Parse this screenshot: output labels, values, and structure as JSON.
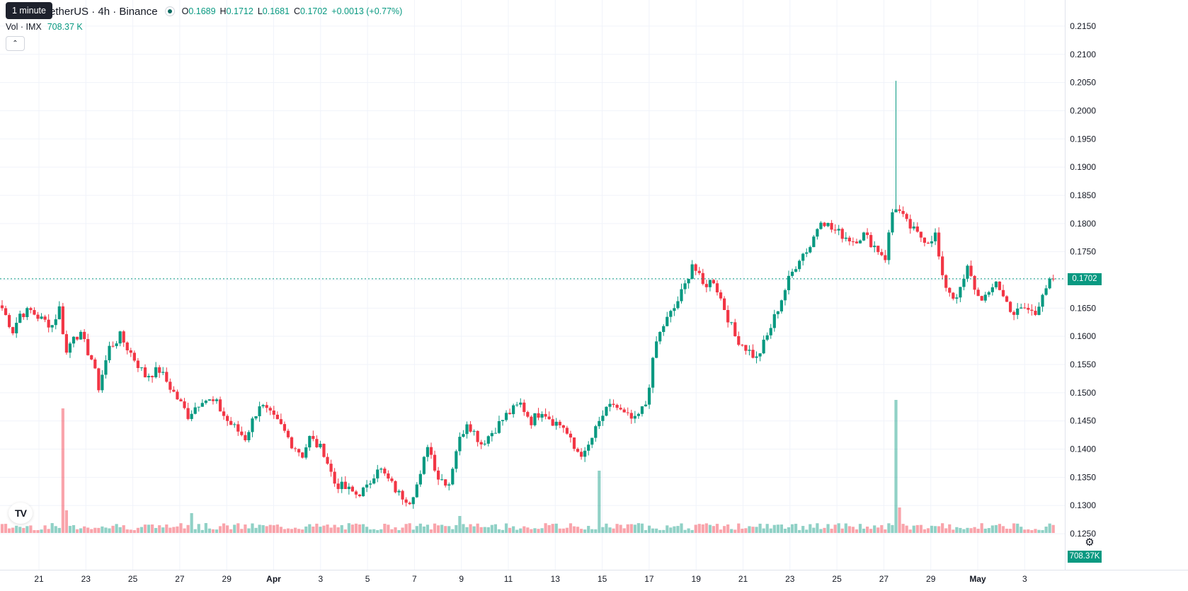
{
  "header": {
    "symbol_text": "etherUS · 4h · Binance",
    "tooltip": "1 minute",
    "ohlc": [
      {
        "label": "O",
        "value": "0.1689"
      },
      {
        "label": "H",
        "value": "0.1712"
      },
      {
        "label": "L",
        "value": "0.1681"
      },
      {
        "label": "C",
        "value": "0.1702"
      }
    ],
    "change": "+0.0013 (+0.77%)",
    "volume_label": "Vol · IMX",
    "volume_value": "708.37 K",
    "collapse_icon": "chevron-up-icon"
  },
  "price_axis": {
    "ticks": [
      "0.2150",
      "0.2100",
      "0.2050",
      "0.2000",
      "0.1950",
      "0.1900",
      "0.1850",
      "0.1800",
      "0.1750",
      "0.1700",
      "0.1650",
      "0.1600",
      "0.1550",
      "0.1500",
      "0.1450",
      "0.1400",
      "0.1350",
      "0.1300",
      "0.1250"
    ],
    "last_price": "0.1702",
    "last_volume": "708.37K"
  },
  "time_axis": {
    "labels": [
      "21",
      "23",
      "25",
      "27",
      "29",
      "Apr",
      "3",
      "5",
      "7",
      "9",
      "11",
      "13",
      "15",
      "17",
      "19",
      "21",
      "23",
      "25",
      "27",
      "29",
      "May",
      "3"
    ]
  },
  "colors": {
    "up": "#089981",
    "down": "#f23645",
    "grid": "#f0f3fa",
    "axis_text": "#131722"
  },
  "chart_data": {
    "type": "candlestick",
    "interval": "4h",
    "y_range": [
      0.1225,
      0.2175
    ],
    "last_close": 0.1702,
    "tick_labels": [
      "21",
      "23",
      "25",
      "27",
      "29",
      "Apr",
      "3",
      "5",
      "7",
      "9",
      "11",
      "13",
      "15",
      "17",
      "19",
      "21",
      "23",
      "25",
      "27",
      "29",
      "May",
      "3"
    ],
    "anchors": [
      [
        0,
        0.165
      ],
      [
        3,
        0.161
      ],
      [
        5,
        0.164
      ],
      [
        8,
        0.1645
      ],
      [
        11,
        0.163
      ],
      [
        14,
        0.162
      ],
      [
        16,
        0.165
      ],
      [
        18,
        0.157
      ],
      [
        20,
        0.1605
      ],
      [
        22,
        0.16
      ],
      [
        25,
        0.156
      ],
      [
        27,
        0.151
      ],
      [
        30,
        0.158
      ],
      [
        33,
        0.16
      ],
      [
        36,
        0.157
      ],
      [
        40,
        0.153
      ],
      [
        44,
        0.154
      ],
      [
        48,
        0.15
      ],
      [
        52,
        0.146
      ],
      [
        56,
        0.149
      ],
      [
        60,
        0.148
      ],
      [
        63,
        0.145
      ],
      [
        68,
        0.142
      ],
      [
        72,
        0.148
      ],
      [
        78,
        0.144
      ],
      [
        81,
        0.141
      ],
      [
        84,
        0.139
      ],
      [
        86,
        0.142
      ],
      [
        90,
        0.1395
      ],
      [
        93,
        0.134
      ],
      [
        96,
        0.133
      ],
      [
        99,
        0.132
      ],
      [
        102,
        0.133
      ],
      [
        105,
        0.137
      ],
      [
        108,
        0.1345
      ],
      [
        111,
        0.132
      ],
      [
        114,
        0.131
      ],
      [
        117,
        0.135
      ],
      [
        119,
        0.141
      ],
      [
        122,
        0.135
      ],
      [
        125,
        0.134
      ],
      [
        127,
        0.14
      ],
      [
        130,
        0.145
      ],
      [
        134,
        0.141
      ],
      [
        137,
        0.143
      ],
      [
        141,
        0.146
      ],
      [
        145,
        0.148
      ],
      [
        148,
        0.145
      ],
      [
        151,
        0.147
      ],
      [
        154,
        0.145
      ],
      [
        157,
        0.144
      ],
      [
        160,
        0.14
      ],
      [
        163,
        0.139
      ],
      [
        165,
        0.142
      ],
      [
        168,
        0.146
      ],
      [
        171,
        0.148
      ],
      [
        174,
        0.146
      ],
      [
        177,
        0.145
      ],
      [
        180,
        0.148
      ],
      [
        183,
        0.159
      ],
      [
        185,
        0.162
      ],
      [
        188,
        0.165
      ],
      [
        191,
        0.169
      ],
      [
        193,
        0.173
      ],
      [
        196,
        0.169
      ],
      [
        199,
        0.17
      ],
      [
        202,
        0.165
      ],
      [
        205,
        0.16
      ],
      [
        208,
        0.158
      ],
      [
        211,
        0.156
      ],
      [
        214,
        0.16
      ],
      [
        217,
        0.165
      ],
      [
        220,
        0.17
      ],
      [
        223,
        0.174
      ],
      [
        226,
        0.176
      ],
      [
        229,
        0.181
      ],
      [
        232,
        0.179
      ],
      [
        235,
        0.178
      ],
      [
        238,
        0.177
      ],
      [
        241,
        0.178
      ],
      [
        244,
        0.176
      ],
      [
        247,
        0.174
      ],
      [
        249,
        0.182
      ],
      [
        250,
        0.183
      ],
      [
        253,
        0.18
      ],
      [
        256,
        0.178
      ],
      [
        259,
        0.177
      ],
      [
        261,
        0.178
      ],
      [
        263,
        0.17
      ],
      [
        266,
        0.167
      ],
      [
        268,
        0.168
      ],
      [
        270,
        0.172
      ],
      [
        273,
        0.167
      ],
      [
        276,
        0.167
      ],
      [
        278,
        0.17
      ],
      [
        280,
        0.167
      ],
      [
        283,
        0.164
      ],
      [
        286,
        0.165
      ],
      [
        289,
        0.164
      ],
      [
        291,
        0.168
      ],
      [
        294,
        0.1702
      ]
    ],
    "volume_spikes": [
      [
        17,
        0.44
      ],
      [
        18,
        0.08
      ],
      [
        53,
        0.07
      ],
      [
        128,
        0.06
      ],
      [
        167,
        0.22
      ],
      [
        250,
        0.47
      ],
      [
        251,
        0.09
      ]
    ]
  }
}
